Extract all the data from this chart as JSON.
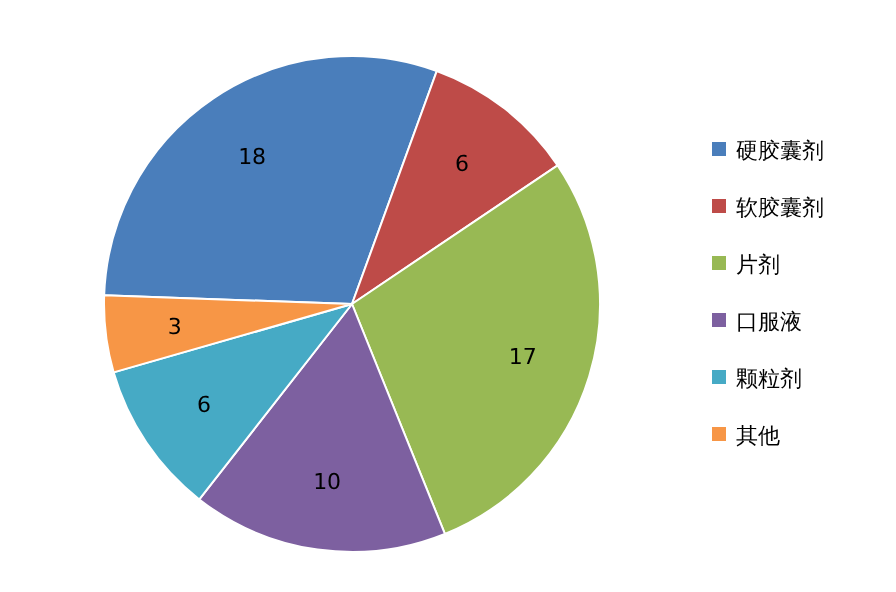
{
  "chart_data": {
    "type": "pie",
    "categories": [
      "硬胶囊剂",
      "软胶囊剂",
      "片剂",
      "口服液",
      "颗粒剂",
      "其他"
    ],
    "values": [
      18,
      6,
      17,
      10,
      6,
      3
    ],
    "colors": [
      "#4a7ebb",
      "#be4b48",
      "#98b954",
      "#7d60a0",
      "#46aac5",
      "#f79646"
    ],
    "data_labels": true,
    "legend": "right"
  }
}
